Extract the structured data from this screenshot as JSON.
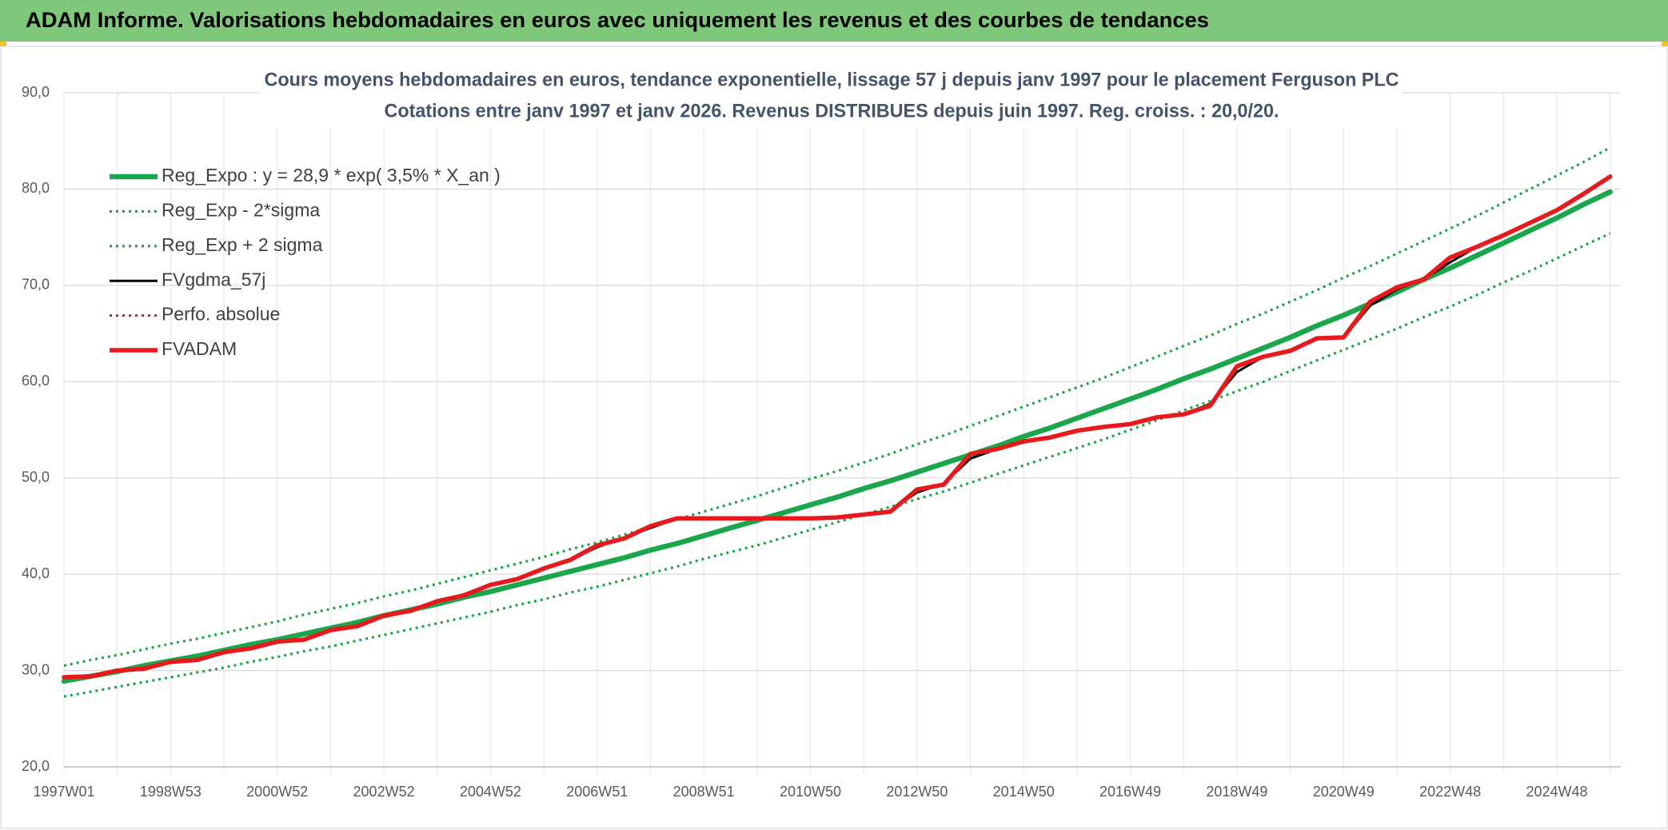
{
  "chart_data": {
    "type": "line",
    "header": "ADAM Informe. Valorisations hebdomadaires en euros avec uniquement les revenus et des courbes de tendances",
    "title": [
      "Cours moyens hebdomadaires en euros, tendance exponentielle, lissage 57 j depuis janv 1997 pour le placement Ferguson PLC",
      "Cotations entre janv 1997 et janv 2026. Revenus DISTRIBUES depuis juin 1997. Reg. croiss. : 20,0/20."
    ],
    "categories": [
      "1997W01",
      null,
      null,
      null,
      "1998W53",
      null,
      null,
      null,
      "2000W52",
      null,
      null,
      null,
      "2002W52",
      null,
      null,
      null,
      "2004W52",
      null,
      null,
      null,
      "2006W51",
      null,
      null,
      null,
      "2008W51",
      null,
      null,
      null,
      "2010W50",
      null,
      null,
      null,
      "2012W50",
      null,
      null,
      null,
      "2014W50",
      null,
      null,
      null,
      "2016W49",
      null,
      null,
      null,
      "2018W49",
      null,
      null,
      null,
      "2020W49",
      null,
      null,
      null,
      "2022W48",
      null,
      null,
      null,
      "2024W48",
      null,
      null
    ],
    "ylim": [
      20,
      90
    ],
    "yticks": [
      {
        "value": 20,
        "label": "20,0"
      },
      {
        "value": 30,
        "label": "30,0"
      },
      {
        "value": 40,
        "label": "40,0"
      },
      {
        "value": 50,
        "label": "50,0"
      },
      {
        "value": 60,
        "label": "60,0"
      },
      {
        "value": 70,
        "label": "70,0"
      },
      {
        "value": 80,
        "label": "80,0"
      },
      {
        "value": 90,
        "label": "90,0"
      }
    ],
    "grid": true,
    "legend": "top-left",
    "series": [
      {
        "name": "Reg_Expo : y = 28,9 * exp( 3,5% *  X_an )",
        "color": "#1aa64a",
        "style": "solid",
        "values": [
          28.9,
          29.4,
          29.9,
          30.5,
          31.0,
          31.5,
          32.1,
          32.7,
          33.2,
          33.8,
          34.4,
          35.0,
          35.7,
          36.3,
          36.9,
          37.6,
          38.2,
          38.9,
          39.6,
          40.3,
          41.0,
          41.7,
          42.5,
          43.2,
          44.0,
          44.8,
          45.6,
          46.4,
          47.2,
          48.0,
          48.9,
          49.7,
          50.6,
          51.5,
          52.4,
          53.3,
          54.3,
          55.2,
          56.2,
          57.2,
          58.2,
          59.2,
          60.3,
          61.3,
          62.4,
          63.5,
          64.6,
          65.8,
          66.9,
          68.1,
          69.3,
          70.6,
          71.8,
          73.1,
          74.4,
          75.7,
          77.0,
          78.4,
          79.7
        ]
      },
      {
        "name": "Reg_Exp - 2*sigma",
        "color": "#1aa64a",
        "style": "dotted",
        "values": [
          27.3,
          27.8,
          28.3,
          28.8,
          29.3,
          29.8,
          30.3,
          30.9,
          31.4,
          32.0,
          32.5,
          33.1,
          33.7,
          34.3,
          34.9,
          35.5,
          36.1,
          36.8,
          37.4,
          38.1,
          38.7,
          39.4,
          40.1,
          40.8,
          41.6,
          42.3,
          43.0,
          43.8,
          44.6,
          45.4,
          46.2,
          47.0,
          47.8,
          48.6,
          49.5,
          50.4,
          51.3,
          52.2,
          53.1,
          54.0,
          55.0,
          56.0,
          57.0,
          58.0,
          59.0,
          60.0,
          61.1,
          62.2,
          63.3,
          64.4,
          65.5,
          66.7,
          67.8,
          69.0,
          70.3,
          71.5,
          72.8,
          74.1,
          75.4
        ]
      },
      {
        "name": "Reg_Exp + 2 sigma",
        "color": "#1aa64a",
        "style": "dotted",
        "values": [
          30.5,
          31.1,
          31.6,
          32.2,
          32.8,
          33.3,
          33.9,
          34.5,
          35.1,
          35.8,
          36.4,
          37.0,
          37.7,
          38.3,
          39.0,
          39.7,
          40.4,
          41.1,
          41.8,
          42.6,
          43.3,
          44.1,
          44.9,
          45.7,
          46.5,
          47.3,
          48.1,
          49.0,
          49.9,
          50.7,
          51.6,
          52.5,
          53.5,
          54.4,
          55.4,
          56.4,
          57.4,
          58.4,
          59.4,
          60.4,
          61.5,
          62.6,
          63.7,
          64.8,
          66.0,
          67.1,
          68.3,
          69.5,
          70.8,
          72.0,
          73.3,
          74.6,
          75.9,
          77.2,
          78.6,
          80.0,
          81.4,
          82.8,
          84.3
        ]
      },
      {
        "name": "FVgdma_57j",
        "color": "#000000",
        "style": "solid",
        "values": [
          29.3,
          29.5,
          29.9,
          30.3,
          30.8,
          31.2,
          31.8,
          32.4,
          32.9,
          33.3,
          34.1,
          34.7,
          35.6,
          36.3,
          37.1,
          37.9,
          38.8,
          39.6,
          40.5,
          41.5,
          42.8,
          43.8,
          44.8,
          45.8,
          45.8,
          45.8,
          45.8,
          45.8,
          45.8,
          45.9,
          46.1,
          46.6,
          48.5,
          49.4,
          52.0,
          53.0,
          53.7,
          54.2,
          54.8,
          55.3,
          55.5,
          56.3,
          56.6,
          57.7,
          61.0,
          62.6,
          63.1,
          64.4,
          64.6,
          67.9,
          69.6,
          70.6,
          72.4,
          74.0,
          75.1,
          76.5,
          77.7,
          79.5,
          81.2
        ]
      },
      {
        "name": "Perfo. absolue",
        "color": "#e8191c",
        "style": "dotted",
        "values": [
          null,
          null,
          null,
          null,
          null,
          null,
          null,
          null,
          null,
          null,
          null,
          null,
          null,
          null,
          null,
          null,
          null,
          null,
          null,
          null,
          null,
          null,
          null,
          null,
          null,
          null,
          null,
          null,
          null,
          null,
          null,
          null,
          null,
          null,
          null,
          null,
          null,
          null,
          null,
          null,
          null,
          null,
          null,
          null,
          null,
          null,
          null,
          null,
          null,
          null,
          null,
          null,
          null,
          null,
          null,
          null,
          null,
          null,
          null
        ]
      },
      {
        "name": "FVADAM",
        "color": "#e8191c",
        "style": "solid",
        "values": [
          29.3,
          29.4,
          30.0,
          30.2,
          30.9,
          31.1,
          31.9,
          32.3,
          33.0,
          33.2,
          34.2,
          34.6,
          35.7,
          36.2,
          37.2,
          37.8,
          38.9,
          39.5,
          40.6,
          41.5,
          43.0,
          43.7,
          45.0,
          45.8,
          45.8,
          45.8,
          45.8,
          45.8,
          45.8,
          45.9,
          46.2,
          46.5,
          48.8,
          49.3,
          52.5,
          53.0,
          53.8,
          54.2,
          54.9,
          55.3,
          55.6,
          56.3,
          56.6,
          57.5,
          61.6,
          62.6,
          63.2,
          64.5,
          64.6,
          68.3,
          69.8,
          70.6,
          72.9,
          74.0,
          75.2,
          76.5,
          77.8,
          79.5,
          81.3
        ]
      }
    ]
  }
}
